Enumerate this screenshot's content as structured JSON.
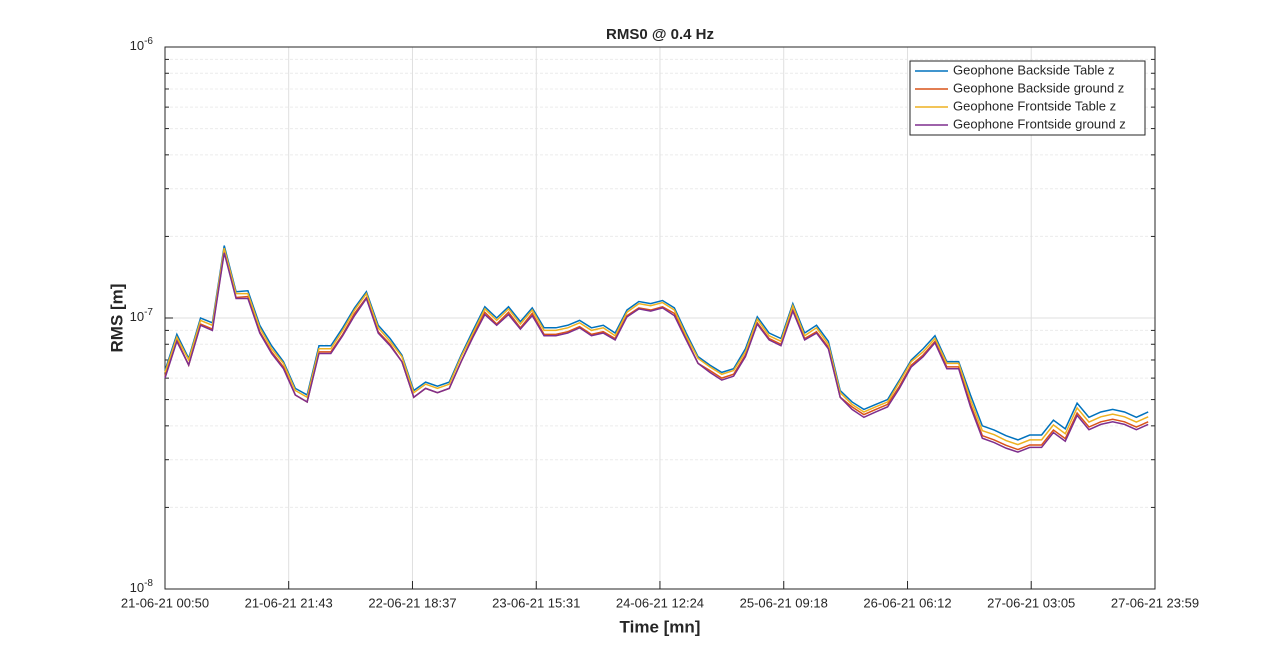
{
  "chart_data": {
    "type": "line",
    "title": "RMS0 @ 0.4 Hz",
    "x_label": "Time [mn]",
    "y_label": "RMS [m]",
    "yscale": "log",
    "grid": true,
    "minor_grid": true,
    "legend": "top-right",
    "ylim": [
      1e-08,
      1e-06
    ],
    "yticks": [
      {
        "value": 1e-08,
        "label": "10",
        "exponent": "-8"
      },
      {
        "value": 1e-07,
        "label": "10",
        "exponent": "-7"
      },
      {
        "value": 1e-06,
        "label": "10",
        "exponent": "-6"
      }
    ],
    "xlim": [
      "21-06-21 00:50",
      "27-06-21 23:59"
    ],
    "xticks": [
      "21-06-21 00:50",
      "21-06-21 21:43",
      "22-06-21 18:37",
      "23-06-21 15:31",
      "24-06-21 12:24",
      "25-06-21 09:18",
      "26-06-21 06:12",
      "27-06-21 03:05",
      "27-06-21 23:59"
    ],
    "x": [
      "21-06-21 00:50",
      "21-06-21 02:50",
      "21-06-21 04:50",
      "21-06-21 06:50",
      "21-06-21 08:50",
      "21-06-21 10:50",
      "21-06-21 12:50",
      "21-06-21 14:50",
      "21-06-21 16:50",
      "21-06-21 18:50",
      "21-06-21 20:50",
      "21-06-21 22:50",
      "22-06-21 00:50",
      "22-06-21 02:50",
      "22-06-21 04:50",
      "22-06-21 06:50",
      "22-06-21 08:50",
      "22-06-21 10:50",
      "22-06-21 12:50",
      "22-06-21 14:50",
      "22-06-21 16:50",
      "22-06-21 18:50",
      "22-06-21 20:50",
      "22-06-21 22:50",
      "23-06-21 00:50",
      "23-06-21 02:50",
      "23-06-21 04:50",
      "23-06-21 06:50",
      "23-06-21 08:50",
      "23-06-21 10:50",
      "23-06-21 12:50",
      "23-06-21 14:50",
      "23-06-21 16:50",
      "23-06-21 18:50",
      "23-06-21 20:50",
      "23-06-21 22:50",
      "24-06-21 00:50",
      "24-06-21 02:50",
      "24-06-21 04:50",
      "24-06-21 06:50",
      "24-06-21 08:50",
      "24-06-21 10:50",
      "24-06-21 12:50",
      "24-06-21 14:50",
      "24-06-21 16:50",
      "24-06-21 18:50",
      "24-06-21 20:50",
      "24-06-21 22:50",
      "25-06-21 00:50",
      "25-06-21 02:50",
      "25-06-21 04:50",
      "25-06-21 06:50",
      "25-06-21 08:50",
      "25-06-21 10:50",
      "25-06-21 12:50",
      "25-06-21 14:50",
      "25-06-21 16:50",
      "25-06-21 18:50",
      "25-06-21 20:50",
      "25-06-21 22:50",
      "26-06-21 00:50",
      "26-06-21 02:50",
      "26-06-21 04:50",
      "26-06-21 06:50",
      "26-06-21 08:50",
      "26-06-21 10:50",
      "26-06-21 12:50",
      "26-06-21 14:50",
      "26-06-21 16:50",
      "26-06-21 18:50",
      "26-06-21 20:50",
      "26-06-21 22:50",
      "27-06-21 00:50",
      "27-06-21 02:50",
      "27-06-21 04:50",
      "27-06-21 06:50",
      "27-06-21 08:50",
      "27-06-21 10:50",
      "27-06-21 12:50",
      "27-06-21 14:50",
      "27-06-21 16:50",
      "27-06-21 18:50",
      "27-06-21 20:50",
      "27-06-21 22:50"
    ],
    "series": [
      {
        "name": "Geophone Backside Table z",
        "color": "#0072bd",
        "values": [
          6.4e-08,
          8.7e-08,
          7.1e-08,
          1e-07,
          9.6e-08,
          1.85e-07,
          1.25e-07,
          1.26e-07,
          9.4e-08,
          7.9e-08,
          6.9e-08,
          5.5e-08,
          5.2e-08,
          7.9e-08,
          7.9e-08,
          9.2e-08,
          1.09e-07,
          1.25e-07,
          9.4e-08,
          8.4e-08,
          7.3e-08,
          5.4e-08,
          5.8e-08,
          5.6e-08,
          5.8e-08,
          7.3e-08,
          9e-08,
          1.1e-07,
          1e-07,
          1.1e-07,
          9.7e-08,
          1.09e-07,
          9.2e-08,
          9.2e-08,
          9.4e-08,
          9.8e-08,
          9.2e-08,
          9.4e-08,
          8.8e-08,
          1.07e-07,
          1.15e-07,
          1.13e-07,
          1.16e-07,
          1.09e-07,
          8.8e-08,
          7.2e-08,
          6.7e-08,
          6.3e-08,
          6.5e-08,
          7.7e-08,
          1.01e-07,
          8.8e-08,
          8.4e-08,
          1.13e-07,
          8.8e-08,
          9.4e-08,
          8.2e-08,
          5.4e-08,
          4.9e-08,
          4.6e-08,
          4.8e-08,
          5e-08,
          5.9e-08,
          7e-08,
          7.7e-08,
          8.6e-08,
          6.9e-08,
          6.9e-08,
          5.2e-08,
          4e-08,
          3.86e-08,
          3.68e-08,
          3.55e-08,
          3.7e-08,
          3.7e-08,
          4.2e-08,
          3.9e-08,
          4.85e-08,
          4.3e-08,
          4.5e-08,
          4.6e-08,
          4.5e-08,
          4.3e-08,
          4.5e-08
        ]
      },
      {
        "name": "Geophone Backside ground z",
        "color": "#d95319",
        "values": [
          6.1e-08,
          8.3e-08,
          6.7e-08,
          9.5e-08,
          9.1e-08,
          1.76e-07,
          1.19e-07,
          1.2e-07,
          8.9e-08,
          7.5e-08,
          6.6e-08,
          5.2e-08,
          4.9e-08,
          7.5e-08,
          7.5e-08,
          8.7e-08,
          1.04e-07,
          1.19e-07,
          8.9e-08,
          8e-08,
          6.9e-08,
          5.1e-08,
          5.5e-08,
          5.3e-08,
          5.5e-08,
          6.9e-08,
          8.6e-08,
          1.05e-07,
          9.5e-08,
          1.05e-07,
          9.2e-08,
          1.04e-07,
          8.7e-08,
          8.7e-08,
          8.9e-08,
          9.3e-08,
          8.7e-08,
          8.9e-08,
          8.4e-08,
          1.02e-07,
          1.09e-07,
          1.07e-07,
          1.1e-07,
          1.04e-07,
          8.4e-08,
          6.8e-08,
          6.4e-08,
          6e-08,
          6.2e-08,
          7.3e-08,
          9.6e-08,
          8.4e-08,
          8e-08,
          1.07e-07,
          8.4e-08,
          8.9e-08,
          7.8e-08,
          5.1e-08,
          4.7e-08,
          4.4e-08,
          4.6e-08,
          4.8e-08,
          5.6e-08,
          6.7e-08,
          7.3e-08,
          8.2e-08,
          6.6e-08,
          6.6e-08,
          4.8e-08,
          3.68e-08,
          3.55e-08,
          3.39e-08,
          3.27e-08,
          3.4e-08,
          3.4e-08,
          3.86e-08,
          3.59e-08,
          4.46e-08,
          3.96e-08,
          4.14e-08,
          4.23e-08,
          4.14e-08,
          3.96e-08,
          4.14e-08
        ]
      },
      {
        "name": "Geophone Frontside Table z",
        "color": "#edb120",
        "values": [
          6.3e-08,
          8.5e-08,
          7e-08,
          9.8e-08,
          9.4e-08,
          1.81e-07,
          1.23e-07,
          1.23e-07,
          9.2e-08,
          7.7e-08,
          6.8e-08,
          5.4e-08,
          5.1e-08,
          7.7e-08,
          7.7e-08,
          9e-08,
          1.07e-07,
          1.23e-07,
          9.2e-08,
          8.2e-08,
          7.2e-08,
          5.3e-08,
          5.7e-08,
          5.5e-08,
          5.7e-08,
          7.2e-08,
          8.8e-08,
          1.08e-07,
          9.8e-08,
          1.08e-07,
          9.5e-08,
          1.07e-07,
          9e-08,
          9e-08,
          9.2e-08,
          9.6e-08,
          9e-08,
          9.2e-08,
          8.6e-08,
          1.05e-07,
          1.13e-07,
          1.11e-07,
          1.14e-07,
          1.07e-07,
          8.6e-08,
          7.1e-08,
          6.6e-08,
          6.2e-08,
          6.4e-08,
          7.5e-08,
          9.9e-08,
          8.6e-08,
          8.2e-08,
          1.11e-07,
          8.6e-08,
          9.2e-08,
          8e-08,
          5.3e-08,
          4.8e-08,
          4.5e-08,
          4.7e-08,
          4.9e-08,
          5.8e-08,
          6.9e-08,
          7.5e-08,
          8.4e-08,
          6.8e-08,
          6.8e-08,
          5e-08,
          3.84e-08,
          3.71e-08,
          3.53e-08,
          3.41e-08,
          3.55e-08,
          3.55e-08,
          4.03e-08,
          3.74e-08,
          4.66e-08,
          4.13e-08,
          4.32e-08,
          4.42e-08,
          4.32e-08,
          4.13e-08,
          4.32e-08
        ]
      },
      {
        "name": "Geophone Frontside ground z",
        "color": "#7e2f8e",
        "values": [
          6e-08,
          8.2e-08,
          6.7e-08,
          9.4e-08,
          9e-08,
          1.74e-07,
          1.18e-07,
          1.18e-07,
          8.8e-08,
          7.4e-08,
          6.5e-08,
          5.2e-08,
          4.9e-08,
          7.4e-08,
          7.4e-08,
          8.6e-08,
          1.02e-07,
          1.18e-07,
          8.8e-08,
          7.9e-08,
          6.9e-08,
          5.1e-08,
          5.5e-08,
          5.3e-08,
          5.5e-08,
          6.9e-08,
          8.5e-08,
          1.03e-07,
          9.4e-08,
          1.03e-07,
          9.1e-08,
          1.02e-07,
          8.6e-08,
          8.6e-08,
          8.8e-08,
          9.2e-08,
          8.6e-08,
          8.8e-08,
          8.3e-08,
          1.01e-07,
          1.08e-07,
          1.06e-07,
          1.09e-07,
          1.02e-07,
          8.3e-08,
          6.8e-08,
          6.3e-08,
          5.9e-08,
          6.1e-08,
          7.2e-08,
          9.5e-08,
          8.3e-08,
          7.9e-08,
          1.06e-07,
          8.3e-08,
          8.8e-08,
          7.7e-08,
          5.1e-08,
          4.6e-08,
          4.3e-08,
          4.5e-08,
          4.7e-08,
          5.5e-08,
          6.6e-08,
          7.2e-08,
          8.1e-08,
          6.5e-08,
          6.5e-08,
          4.7e-08,
          3.6e-08,
          3.47e-08,
          3.31e-08,
          3.2e-08,
          3.33e-08,
          3.33e-08,
          3.78e-08,
          3.51e-08,
          4.37e-08,
          3.87e-08,
          4.05e-08,
          4.14e-08,
          4.05e-08,
          3.87e-08,
          4.05e-08
        ]
      }
    ]
  }
}
